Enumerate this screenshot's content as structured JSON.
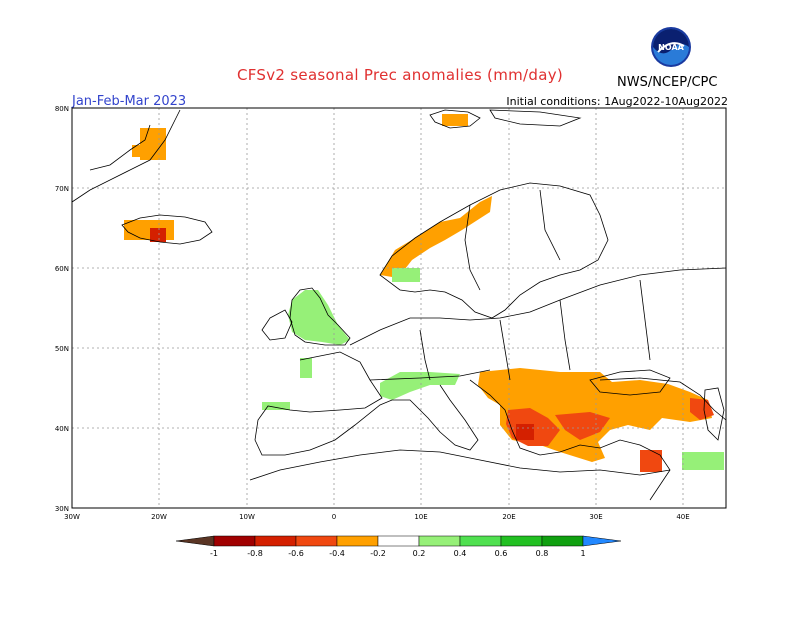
{
  "header": {
    "title": "CFSv2 seasonal Prec anomalies (mm/day)",
    "period": "Jan-Feb-Mar 2023",
    "initial_conditions": "Initial conditions: 1Aug2022-10Aug2022",
    "agency": "NWS/NCEP/CPC",
    "logo_text": "NOAA"
  },
  "axes": {
    "lat_labels": [
      "80N",
      "70N",
      "60N",
      "50N",
      "40N",
      "30N"
    ],
    "lon_labels": [
      "30W",
      "20W",
      "10W",
      "0",
      "10E",
      "20E",
      "30E",
      "40E"
    ]
  },
  "colorbar": {
    "labels": [
      "-1",
      "-0.8",
      "-0.6",
      "-0.4",
      "-0.2",
      "0.2",
      "0.4",
      "0.6",
      "0.8",
      "1"
    ],
    "colors": [
      "#5a3524",
      "#a00000",
      "#d42000",
      "#f04810",
      "#ffa000",
      "#ffffff",
      "#96f078",
      "#50e050",
      "#22c022",
      "#10a010",
      "#2288ff"
    ]
  },
  "legend_colors": {
    "orange": "#ffa000",
    "orange_red": "#f04810",
    "red": "#d42000",
    "light_green": "#96f078"
  }
}
